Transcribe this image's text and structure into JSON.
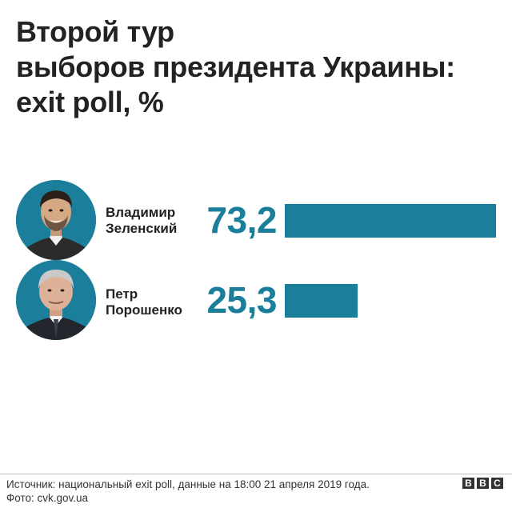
{
  "title_lines": [
    "Второй тур",
    "выборов президента Украины:",
    "exit poll, %"
  ],
  "colors": {
    "accent": "#1b7f9c",
    "text": "#222222",
    "photo_bg": "#1b7f9c"
  },
  "chart_data": {
    "type": "bar",
    "orientation": "horizontal",
    "title": "Второй тур выборов президента Украины: exit poll, %",
    "categories": [
      "Владимир Зеленский",
      "Петр Порошенко"
    ],
    "values": [
      73.2,
      25.3
    ],
    "value_labels": [
      "73,2",
      "25,3"
    ],
    "unit": "%",
    "xlim": [
      0,
      73.2
    ],
    "grid": false,
    "legend": "none"
  },
  "candidates": [
    {
      "name_line1": "Владимир",
      "name_line2": "Зеленский",
      "value_label": "73,2",
      "photo": "portrait-photo"
    },
    {
      "name_line1": "Петр",
      "name_line2": "Порошенко",
      "value_label": "25,3",
      "photo": "portrait-photo"
    }
  ],
  "footer": {
    "source": "Источник: национальный exit poll, данные на 18:00 21 апреля 2019 года.",
    "photo_credit": "Фото: cvk.gov.ua"
  },
  "logo": {
    "letters": [
      "B",
      "B",
      "C"
    ]
  }
}
